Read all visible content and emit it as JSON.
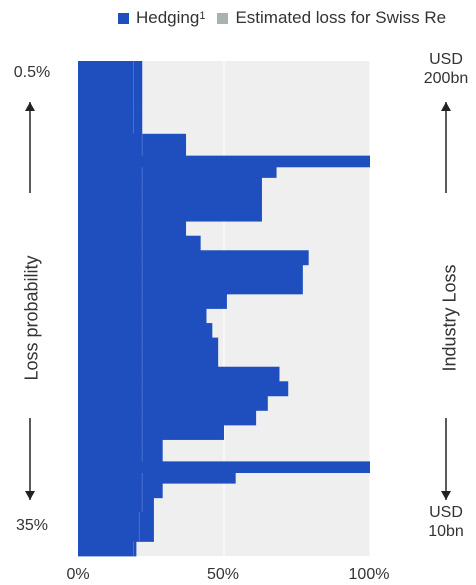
{
  "legend": {
    "hedging_label": "Hedging",
    "hedging_sup": "1",
    "loss_label": "Estimated loss for Swiss Re"
  },
  "left_axis": {
    "title": "Loss probability",
    "top_label": "0.5%",
    "bottom_label": "35%"
  },
  "right_axis": {
    "title": "Industry Loss",
    "top_line1": "USD",
    "top_line2": "200bn",
    "bottom_line1": "USD",
    "bottom_line2": "10bn"
  },
  "colors": {
    "hedging": "#1f4fbf",
    "loss": "#a9b3ac",
    "plot_bg": "#efefef",
    "arrow": "#222222"
  },
  "chart_data": {
    "type": "bar",
    "orientation": "horizontal",
    "stacked": true,
    "xlim": [
      0,
      100
    ],
    "x_unit": "%",
    "x_ticks": [
      "0%",
      "50%",
      "100%"
    ],
    "grid": true,
    "legend_position": "top",
    "series": [
      {
        "name": "Hedging",
        "values": [
          22,
          22,
          22,
          22,
          22,
          37,
          37,
          68,
          63,
          63,
          63,
          37,
          42,
          79,
          77,
          77,
          51,
          44,
          46,
          48,
          48,
          69,
          72,
          65,
          61,
          50,
          29,
          29,
          54,
          29,
          26,
          26,
          26,
          20
        ]
      },
      {
        "name": "Estimated loss for Swiss Re",
        "values": [
          19,
          19,
          19,
          19,
          19,
          22,
          22,
          22,
          22,
          22,
          22,
          22,
          22,
          22,
          22,
          22,
          22,
          22,
          22,
          22,
          22,
          22,
          22,
          22,
          22,
          22,
          22,
          22,
          22,
          22,
          22,
          21,
          21,
          19
        ]
      }
    ],
    "extra_rows": [
      {
        "index": 7,
        "value": 100
      },
      {
        "index": 28,
        "value": 100
      }
    ]
  }
}
